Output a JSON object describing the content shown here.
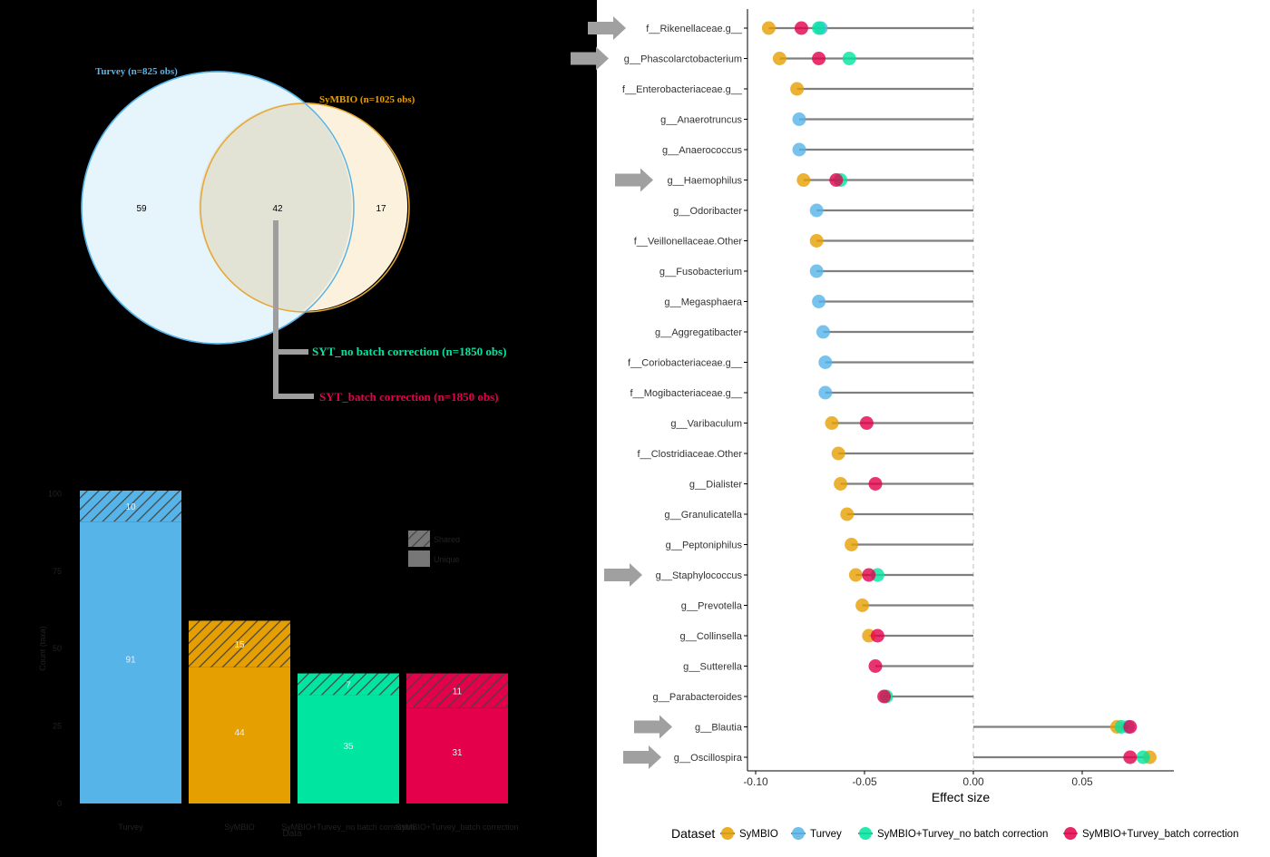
{
  "venn": {
    "turvey_label": "Turvey (n=825 obs)",
    "symbio_label": "SyMBIO (n=1025 obs)",
    "only_turvey": "59",
    "overlap": "42",
    "only_symbio": "17",
    "conn_no_batch": "SYT_no batch correction (n=1850 obs)",
    "conn_batch": "SYT_batch correction (n=1850 obs)",
    "colors": {
      "turvey": "#56B4E9",
      "symbio": "#E69F00",
      "no_batch": "#00E5A0",
      "batch": "#E4004B"
    }
  },
  "chart_data": [
    {
      "type": "bar",
      "title": "",
      "xlabel": "Data",
      "ylabel": "Count (taxa)",
      "y_ticks": [
        "0",
        "25",
        "50",
        "75",
        "100"
      ],
      "ylim": [
        0,
        100
      ],
      "categories": [
        "Turvey",
        "SyMBIO",
        "SyMBIO+Turvey_no batch correction",
        "SyMBIO+Turvey_batch correction"
      ],
      "series": [
        {
          "name": "",
          "values": [
            91,
            44,
            35,
            31
          ]
        },
        {
          "name": "Shared",
          "values": [
            10,
            15,
            7,
            11
          ],
          "hatched": true
        }
      ],
      "bar_colors": [
        "#56B4E9",
        "#E69F00",
        "#00E5A0",
        "#E4004B"
      ],
      "legend_entries": [
        "Shared",
        "Unique"
      ],
      "legend_position": "top-right"
    },
    {
      "type": "scatter",
      "subtype": "lollipop",
      "xlabel": "Effect size",
      "ylabel": "",
      "xlim": [
        -0.102,
        0.084
      ],
      "x_ticks": [
        -0.1,
        -0.05,
        0.0,
        0.05
      ],
      "x_tick_labels": [
        "-0.10",
        "-0.05",
        "0.00",
        "0.05"
      ],
      "grid": false,
      "reference_line": 0,
      "taxa": [
        "f__Rikenellaceae.g__",
        "g__Phascolarctobacterium",
        "f__Enterobacteriaceae.g__",
        "g__Anaerotruncus",
        "g__Anaerococcus",
        "g__Haemophilus",
        "g__Odoribacter",
        "f__Veillonellaceae.Other",
        "g__Fusobacterium",
        "g__Megasphaera",
        "g__Aggregatibacter",
        "f__Coriobacteriaceae.g__",
        "f__Mogibacteriaceae.g__",
        "g__Varibaculum",
        "f__Clostridiaceae.Other",
        "g__Dialister",
        "g__Granulicatella",
        "g__Peptoniphilus",
        "g__Staphylococcus",
        "g__Prevotella",
        "g__Collinsella",
        "g__Sutterella",
        "g__Parabacteroides",
        "g__Blautia",
        "g__Oscillospira"
      ],
      "highlighted_taxa": [
        "f__Rikenellaceae.g__",
        "g__Phascolarctobacterium",
        "g__Haemophilus",
        "g__Staphylococcus",
        "g__Blautia",
        "g__Oscillospira"
      ],
      "legend_title": "Dataset",
      "legend_position": "bottom",
      "series": [
        {
          "name": "SyMBIO",
          "color": "#E69F00",
          "values": [
            -0.094,
            -0.089,
            -0.081,
            null,
            null,
            -0.078,
            null,
            -0.072,
            null,
            null,
            null,
            null,
            null,
            -0.065,
            -0.062,
            -0.061,
            -0.058,
            -0.056,
            -0.054,
            -0.051,
            -0.048,
            null,
            null,
            0.066,
            0.081
          ]
        },
        {
          "name": "Turvey",
          "color": "#56B4E9",
          "values": [
            -0.07,
            null,
            null,
            -0.08,
            -0.08,
            null,
            -0.072,
            null,
            -0.072,
            -0.071,
            -0.069,
            -0.068,
            -0.068,
            null,
            null,
            null,
            null,
            null,
            null,
            null,
            null,
            null,
            null,
            0.071,
            null
          ]
        },
        {
          "name": "SyMBIO+Turvey_no batch correction",
          "color": "#00E5A0",
          "values": [
            -0.071,
            -0.057,
            null,
            null,
            null,
            -0.061,
            null,
            null,
            null,
            null,
            null,
            null,
            null,
            null,
            null,
            null,
            null,
            null,
            -0.044,
            null,
            null,
            null,
            -0.04,
            0.068,
            0.078
          ]
        },
        {
          "name": "SyMBIO+Turvey_batch correction",
          "color": "#E4004B",
          "values": [
            -0.079,
            -0.071,
            null,
            null,
            null,
            -0.063,
            null,
            null,
            null,
            null,
            null,
            null,
            null,
            -0.049,
            null,
            -0.045,
            null,
            null,
            -0.048,
            null,
            -0.044,
            -0.045,
            -0.041,
            0.072,
            0.072
          ]
        }
      ]
    }
  ]
}
